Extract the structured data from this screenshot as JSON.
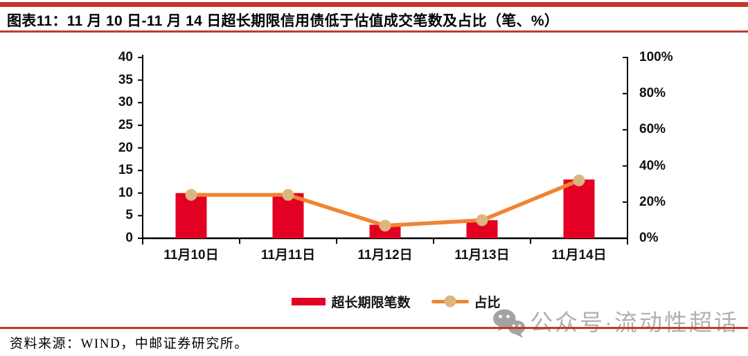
{
  "figure": {
    "title": "图表11：11 月 10 日-11 月 14 日超长期限信用债低于估值成交笔数及占比（笔、%）",
    "source": "资料来源：WIND，中邮证券研究所。",
    "watermark_text": "公众号·流动性超话"
  },
  "colors": {
    "rule_red": "#c9342b",
    "bar_red": "#e30022",
    "line_orange": "#ef8433",
    "marker_tan": "#dcb67f",
    "watermark_gray": "#b0b0b0",
    "axis_black": "#000000"
  },
  "chart_data": {
    "type": "bar",
    "subtype": "bar-plus-line-dual-axis",
    "title": "11 月 10 日-11 月 14 日超长期限信用债低于估值成交笔数及占比（笔、%）",
    "categories": [
      "11月10日",
      "11月11日",
      "11月12日",
      "11月13日",
      "11月14日"
    ],
    "series": [
      {
        "name": "超长期限笔数",
        "type": "bar",
        "axis": "left",
        "values": [
          10,
          10,
          3,
          4,
          13
        ]
      },
      {
        "name": "占比",
        "type": "line",
        "axis": "right",
        "unit": "%",
        "values": [
          24,
          24,
          7,
          10,
          32
        ]
      }
    ],
    "left_axis": {
      "min": 0,
      "max": 40,
      "tick_labels": [
        "0",
        "5",
        "10",
        "15",
        "20",
        "25",
        "30",
        "35",
        "40"
      ]
    },
    "right_axis": {
      "min": 0,
      "max": 100,
      "tick_labels": [
        "0%",
        "20%",
        "40%",
        "60%",
        "80%",
        "100%"
      ]
    },
    "legend": {
      "position": "bottom",
      "items": [
        "超长期限笔数",
        "占比"
      ]
    },
    "grid": false
  }
}
